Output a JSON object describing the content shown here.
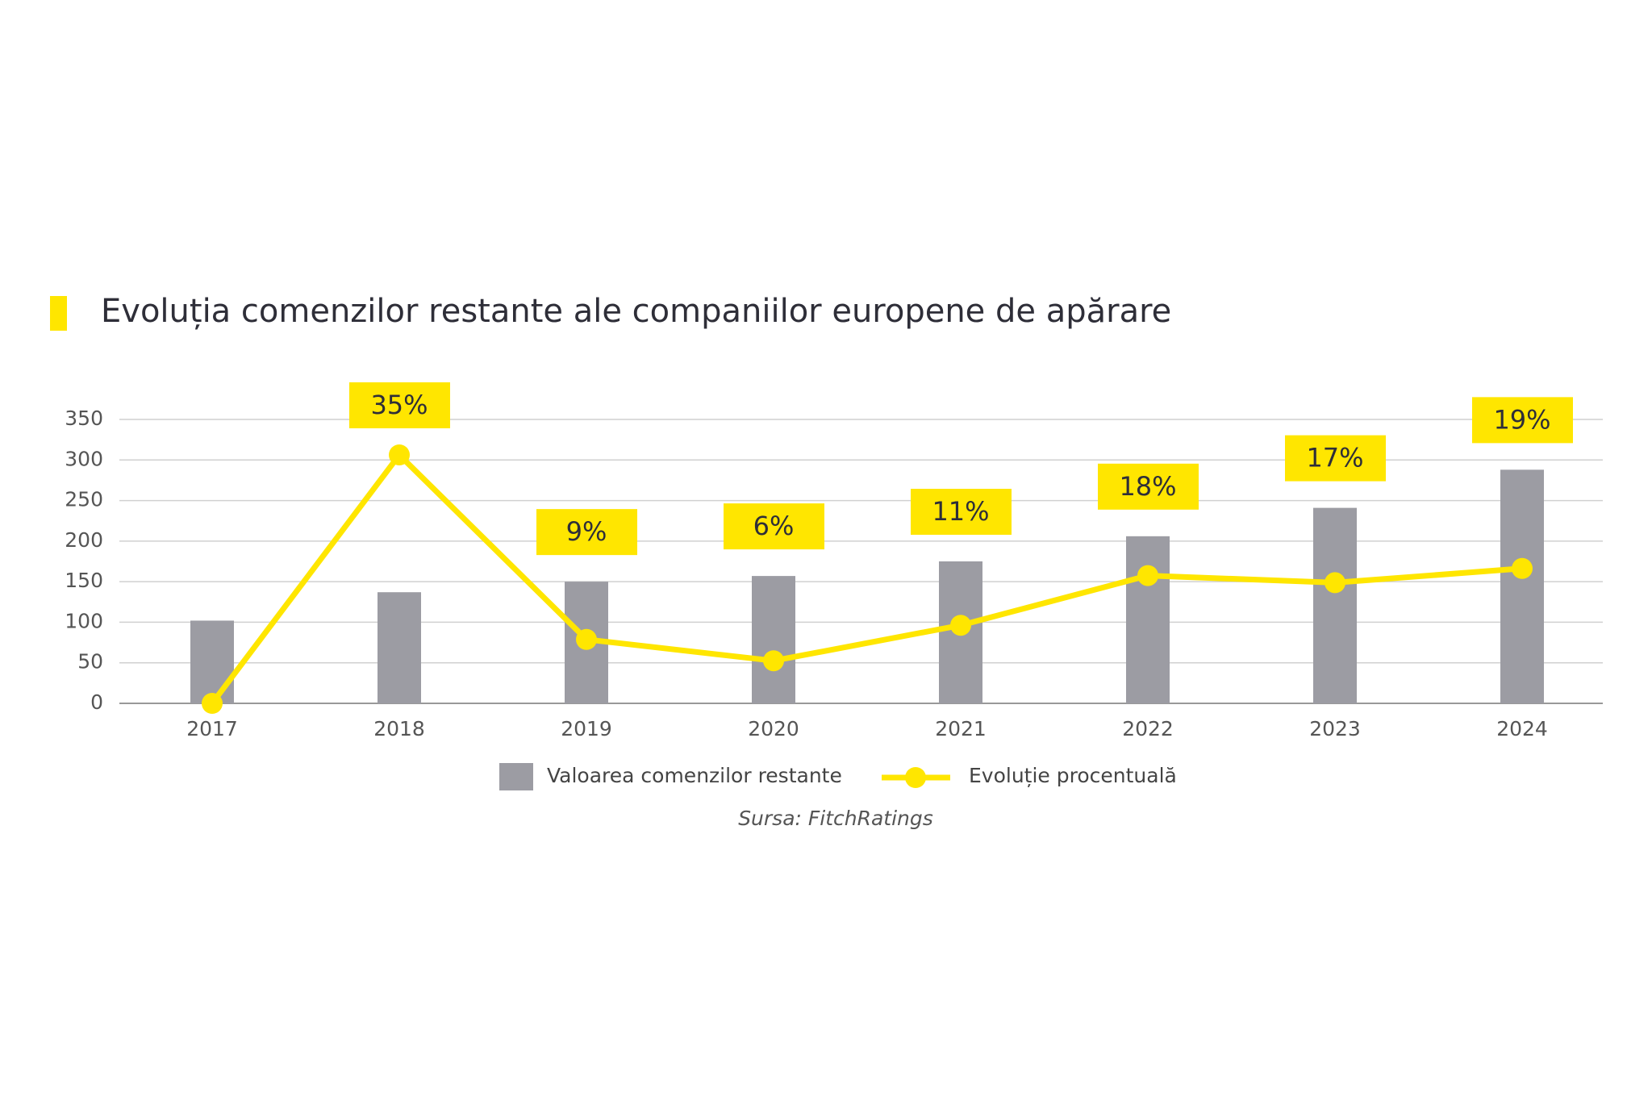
{
  "chart_data": {
    "type": "bar-line",
    "title": "Evoluția comenzilor restante ale companiilor europene de apărare",
    "source": "Sursa: FitchRatings",
    "categories": [
      "2017",
      "2018",
      "2019",
      "2020",
      "2021",
      "2022",
      "2023",
      "2024"
    ],
    "series": [
      {
        "name": "Valoarea comenzilor restante",
        "type": "bar",
        "color": "#9c9ca3",
        "values": [
          102,
          137,
          150,
          157,
          175,
          206,
          241,
          288
        ]
      },
      {
        "name": "Evoluție procentuală",
        "type": "line",
        "axis": "y2",
        "color": "#ffe600",
        "values": [
          0,
          35,
          9,
          6,
          11,
          18,
          17,
          19
        ],
        "value_labels": [
          null,
          "35%",
          "9%",
          "6%",
          "11%",
          "18%",
          "17%",
          "19%"
        ]
      }
    ],
    "ylim": [
      0,
      350
    ],
    "yticks": [
      0,
      50,
      100,
      150,
      200,
      250,
      300,
      350
    ],
    "y2lim": [
      0,
      40
    ],
    "grid": true
  }
}
